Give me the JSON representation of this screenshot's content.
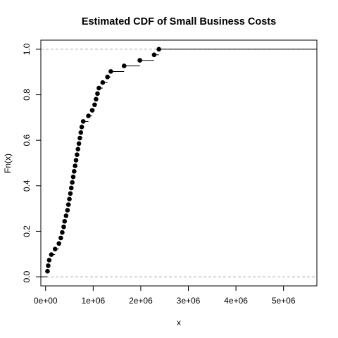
{
  "chart_data": {
    "type": "scatter",
    "subtype": "ecdf-step",
    "title": "Estimated CDF of Small Business Costs",
    "xlabel": "x",
    "ylabel": "Fn(x)",
    "xlim": [
      -100000,
      5700000
    ],
    "ylim": [
      -0.04,
      1.04
    ],
    "x_ticks": [
      0,
      1000000,
      2000000,
      3000000,
      4000000,
      5000000
    ],
    "x_tick_labels": [
      "0e+00",
      "1e+06",
      "2e+06",
      "3e+06",
      "4e+06",
      "5e+06"
    ],
    "y_ticks": [
      0.0,
      0.2,
      0.4,
      0.6,
      0.8,
      1.0
    ],
    "y_tick_labels": [
      "0.0",
      "0.2",
      "0.4",
      "0.6",
      "0.8",
      "1.0"
    ],
    "reference_lines": [
      0,
      1
    ],
    "x": [
      40000,
      55000,
      75000,
      120000,
      200000,
      280000,
      320000,
      350000,
      380000,
      400000,
      430000,
      460000,
      480000,
      500000,
      520000,
      540000,
      560000,
      580000,
      600000,
      620000,
      640000,
      660000,
      680000,
      700000,
      720000,
      740000,
      760000,
      790000,
      900000,
      980000,
      1030000,
      1060000,
      1090000,
      1120000,
      1200000,
      1300000,
      1370000,
      1650000,
      1980000,
      2280000,
      2380000
    ],
    "y": [
      0.0244,
      0.0488,
      0.0732,
      0.0976,
      0.122,
      0.1463,
      0.1707,
      0.1951,
      0.2195,
      0.2439,
      0.2683,
      0.2927,
      0.3171,
      0.3415,
      0.3659,
      0.3902,
      0.4146,
      0.439,
      0.4634,
      0.4878,
      0.5122,
      0.5366,
      0.561,
      0.5854,
      0.6098,
      0.6341,
      0.6585,
      0.6829,
      0.7073,
      0.7317,
      0.7561,
      0.7805,
      0.8049,
      0.8293,
      0.8537,
      0.878,
      0.9024,
      0.9268,
      0.9512,
      0.9756,
      1.0
    ]
  }
}
